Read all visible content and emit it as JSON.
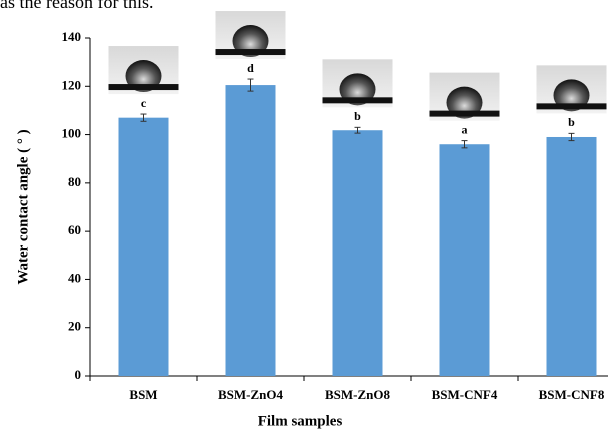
{
  "header_text": "as the reason for this.",
  "chart_data": {
    "type": "bar",
    "x_label": "Film samples",
    "y_label": "Water contact angle ( ° )",
    "categories": [
      "BSM",
      "BSM-ZnO4",
      "BSM-ZnO8",
      "BSM-CNF4",
      "BSM-CNF8"
    ],
    "values": [
      107,
      120.5,
      101.8,
      96,
      99
    ],
    "errors": [
      1.5,
      2.5,
      1.2,
      1.5,
      1.5
    ],
    "significance_letters": [
      "c",
      "d",
      "b",
      "a",
      "b"
    ],
    "color": "#5b9bd5",
    "ylim": [
      0,
      140
    ],
    "yticks": [
      0,
      20,
      40,
      60,
      80,
      100,
      120,
      140
    ]
  }
}
